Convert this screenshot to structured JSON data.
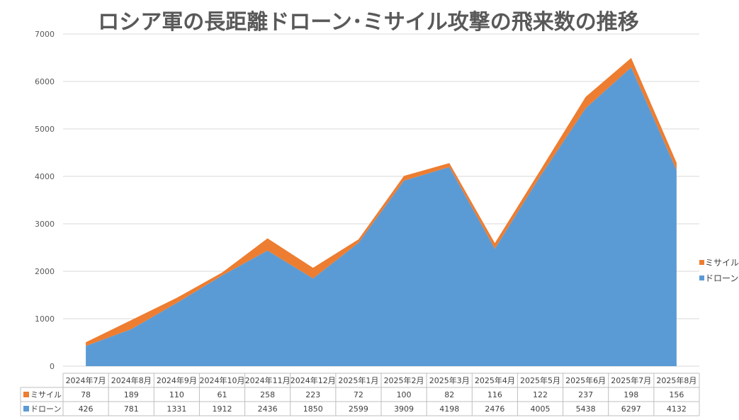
{
  "chart_data": {
    "type": "area",
    "stacked": true,
    "title": "ロシア軍の長距離ドローン･ミサイル攻撃の飛来数の推移",
    "categories": [
      "2024年7月",
      "2024年8月",
      "2024年9月",
      "2024年10月",
      "2024年11月",
      "2024年12月",
      "2025年1月",
      "2025年2月",
      "2025年3月",
      "2025年4月",
      "2025年5月",
      "2025年6月",
      "2025年7月",
      "2025年8月"
    ],
    "series": [
      {
        "name": "ドローン",
        "color": "#5b9bd5",
        "values": [
          426,
          781,
          1331,
          1912,
          2436,
          1850,
          2599,
          3909,
          4198,
          2476,
          4005,
          5438,
          6297,
          4132
        ]
      },
      {
        "name": "ミサイル",
        "color": "#ed7d31",
        "values": [
          78,
          189,
          110,
          61,
          258,
          223,
          72,
          100,
          82,
          116,
          122,
          237,
          198,
          156
        ]
      }
    ],
    "ylim": [
      0,
      7000
    ],
    "yticks": [
      0,
      1000,
      2000,
      3000,
      4000,
      5000,
      6000,
      7000
    ],
    "grid": true,
    "legend": "right",
    "data_table": true
  }
}
